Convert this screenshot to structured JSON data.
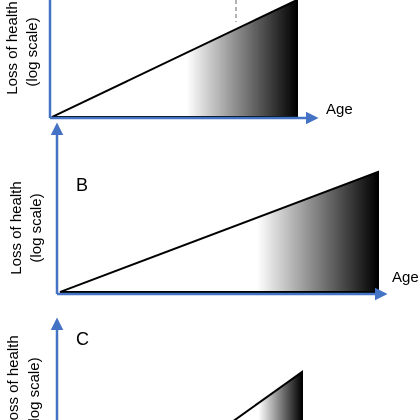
{
  "panels": [
    {
      "y_label": "Loss of health",
      "y_sublabel": "(log scale)",
      "x_label": "Age"
    },
    {
      "letter": "B",
      "y_label": "Loss of health",
      "y_sublabel": "(log scale)",
      "x_label": "Age"
    },
    {
      "letter": "C",
      "y_label": "Loss of health",
      "y_sublabel": "(log scale)"
    }
  ]
}
